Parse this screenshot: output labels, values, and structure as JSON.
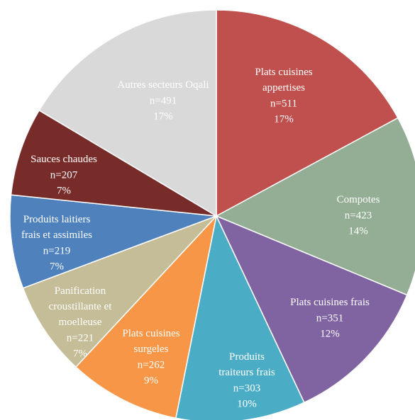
{
  "chart_data": {
    "type": "pie",
    "categories": [
      "Plats cuisines\nappertises",
      "Compotes",
      "Plats cuisines frais",
      "Produits\ntraiteurs frais",
      "Plats cuisines\nsurgeles",
      "Panification\ncroustillante et\nmoelleuse",
      "Produits laitiers\nfrais et assimiles",
      "Sauces chaudes",
      "Autres secteurs Oqali"
    ],
    "values": [
      511,
      423,
      351,
      303,
      262,
      221,
      219,
      207,
      491
    ],
    "value_labels": [
      "n=511",
      "n=423",
      "n=351",
      "n=303",
      "n=262",
      "n=221",
      "n=219",
      "n=207",
      "n=491"
    ],
    "percentages": [
      17,
      14,
      12,
      10,
      9,
      7,
      7,
      7,
      17
    ],
    "percentage_labels": [
      "17%",
      "14%",
      "12%",
      "10%",
      "9%",
      "7%",
      "7%",
      "7%",
      "17%"
    ],
    "colors": [
      "#c0504d",
      "#93ae94",
      "#8064a2",
      "#4bacc6",
      "#f79646",
      "#c4bd97",
      "#4f81bd",
      "#772c2a",
      "#d9d9d9"
    ]
  }
}
